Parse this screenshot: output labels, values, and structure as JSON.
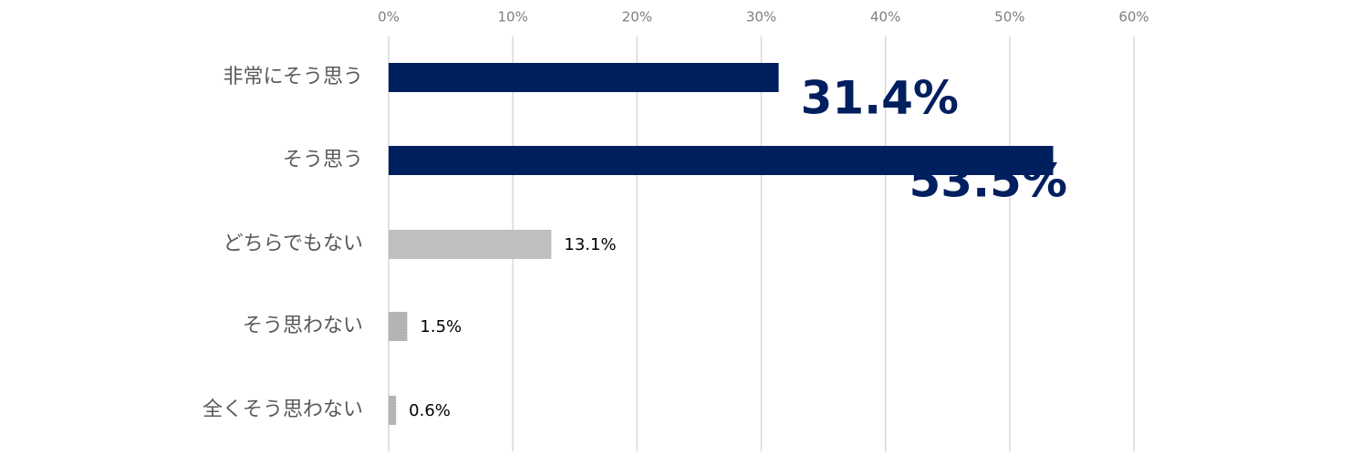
{
  "chart_data": {
    "type": "bar",
    "orientation": "horizontal",
    "categories": [
      "非常にそう思う",
      "そう思う",
      "どちらでもない",
      "そう思わない",
      "全くそう思わない"
    ],
    "values": [
      31.4,
      53.5,
      13.1,
      1.5,
      0.6
    ],
    "value_labels": [
      "31.4%",
      "53.5%",
      "13.1%",
      "1.5%",
      "0.6%"
    ],
    "highlighted": [
      true,
      true,
      false,
      false,
      false
    ],
    "xlim": [
      0,
      60
    ],
    "x_ticks": [
      0,
      10,
      20,
      30,
      40,
      50,
      60
    ],
    "x_tick_labels": [
      "0%",
      "10%",
      "20%",
      "30%",
      "40%",
      "50%",
      "60%"
    ],
    "x_axis_position": "top",
    "grid": true,
    "legend": "none",
    "colors": {
      "highlight": "#001f5f",
      "normal": "#bfbfbf",
      "normal_hatched": "#a6a6a6",
      "grid": "#d9d9d9"
    }
  }
}
